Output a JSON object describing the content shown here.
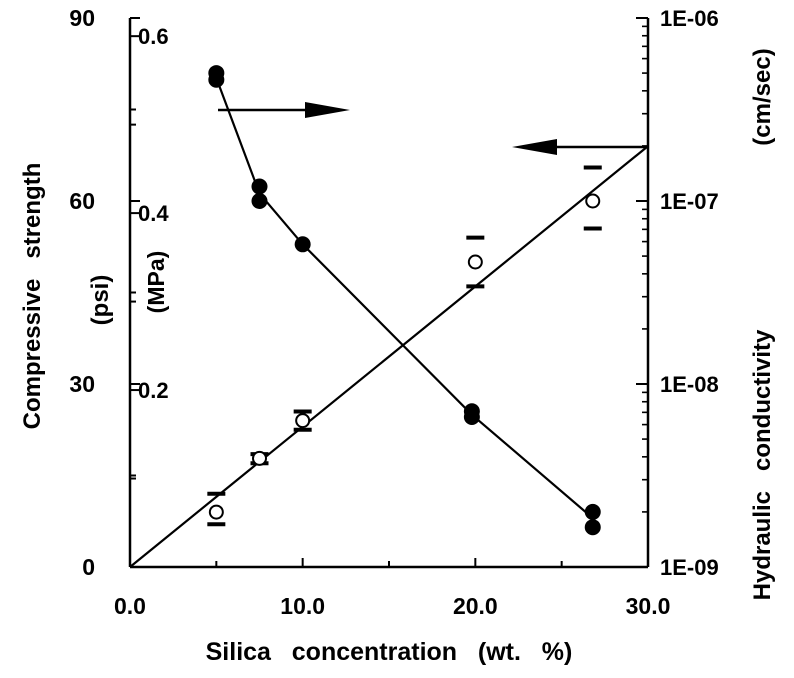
{
  "chart_data": {
    "type": "scatter",
    "x_label": "Silica   concentration   (wt.   %)",
    "x_range": [
      0,
      30
    ],
    "x_ticks": [
      "0.0",
      "10.0",
      "20.0",
      "30.0"
    ],
    "y_left_label": "Compressive   strength",
    "y_left_unit": "(psi)",
    "y_left_range": [
      0,
      90
    ],
    "y_left_ticks": [
      "0",
      "30",
      "60",
      "90"
    ],
    "y_mpa_unit": "(MPa)",
    "y_mpa_ticks": [
      "0.2",
      "0.4",
      "0.6"
    ],
    "y_right_label": "Hydraulic   conductivity",
    "y_right_unit": "(cm/sec)",
    "y_right_scale": "log",
    "y_right_range": [
      1e-09,
      1e-06
    ],
    "y_right_ticks": [
      "1E-09",
      "1E-08",
      "1E-07",
      "1E-06"
    ],
    "series": [
      {
        "axis": "right",
        "marker": "filled-circle",
        "line": "connected",
        "points": [
          {
            "x": 5,
            "y": 5e-07
          },
          {
            "x": 5,
            "y": 4.6e-07
          },
          {
            "x": 7.5,
            "y": 1.2e-07
          },
          {
            "x": 7.5,
            "y": 1e-07
          },
          {
            "x": 10,
            "y": 5.8e-08
          },
          {
            "x": 19.8,
            "y": 7.1e-09
          },
          {
            "x": 19.8,
            "y": 6.6e-09
          },
          {
            "x": 26.8,
            "y": 2e-09
          },
          {
            "x": 26.8,
            "y": 1.65e-09
          }
        ],
        "curve": [
          {
            "x": 5,
            "y": 4.7e-07
          },
          {
            "x": 7.5,
            "y": 1.1e-07
          },
          {
            "x": 10,
            "y": 5.8e-08
          },
          {
            "x": 19.8,
            "y": 6.8e-09
          },
          {
            "x": 26.8,
            "y": 1.85e-09
          }
        ]
      },
      {
        "axis": "left",
        "marker": "open-circle",
        "error_bars": true,
        "points": [
          {
            "x": 5,
            "y": 9,
            "low": 7,
            "high": 12
          },
          {
            "x": 7.5,
            "y": 17.8,
            "low": 17,
            "high": 18.5
          },
          {
            "x": 10,
            "y": 24,
            "low": 22.5,
            "high": 25.5
          },
          {
            "x": 20,
            "y": 50,
            "low": 46,
            "high": 54
          },
          {
            "x": 26.8,
            "y": 60,
            "low": 55.5,
            "high": 65.5
          }
        ],
        "fit_line": [
          {
            "x": 0,
            "y": 0
          },
          {
            "x": 30,
            "y": 69
          }
        ]
      }
    ],
    "annotations": [
      {
        "type": "arrow",
        "direction": "right",
        "points_to": "right-axis"
      },
      {
        "type": "arrow",
        "direction": "left",
        "points_to": "left-axis"
      }
    ]
  }
}
